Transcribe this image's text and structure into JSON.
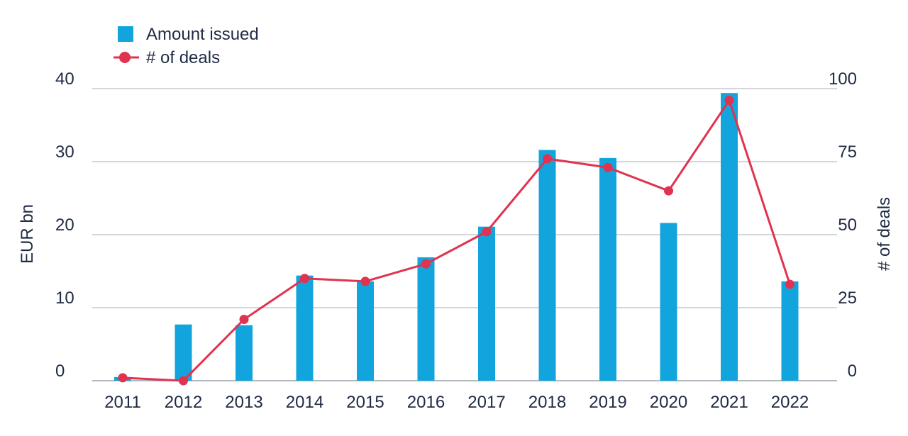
{
  "chart_data": {
    "type": "bar+line",
    "categories": [
      "2011",
      "2012",
      "2013",
      "2014",
      "2015",
      "2016",
      "2017",
      "2018",
      "2019",
      "2020",
      "2021",
      "2022"
    ],
    "series": [
      {
        "name": "Amount issued",
        "type": "bar",
        "axis": "left",
        "color": "#12a5dd",
        "values": [
          0.5,
          7.7,
          7.6,
          14.4,
          13.6,
          16.9,
          21.1,
          31.6,
          30.5,
          21.6,
          39.4,
          13.6
        ]
      },
      {
        "name": "# of deals",
        "type": "line",
        "axis": "right",
        "color": "#e0334f",
        "values": [
          1,
          0,
          21,
          35,
          34,
          40,
          51,
          76,
          73,
          65,
          96,
          33
        ]
      }
    ],
    "left_axis": {
      "label": "EUR bn",
      "ticks": [
        "0",
        "10",
        "20",
        "30",
        "40"
      ],
      "range": [
        0,
        40
      ]
    },
    "right_axis": {
      "label": "# of deals",
      "ticks": [
        "0",
        "25",
        "50",
        "75",
        "100"
      ],
      "range": [
        0,
        100
      ]
    },
    "legend": {
      "position": "top-left",
      "items": [
        "Amount issued",
        "# of deals"
      ]
    },
    "grid": true
  }
}
